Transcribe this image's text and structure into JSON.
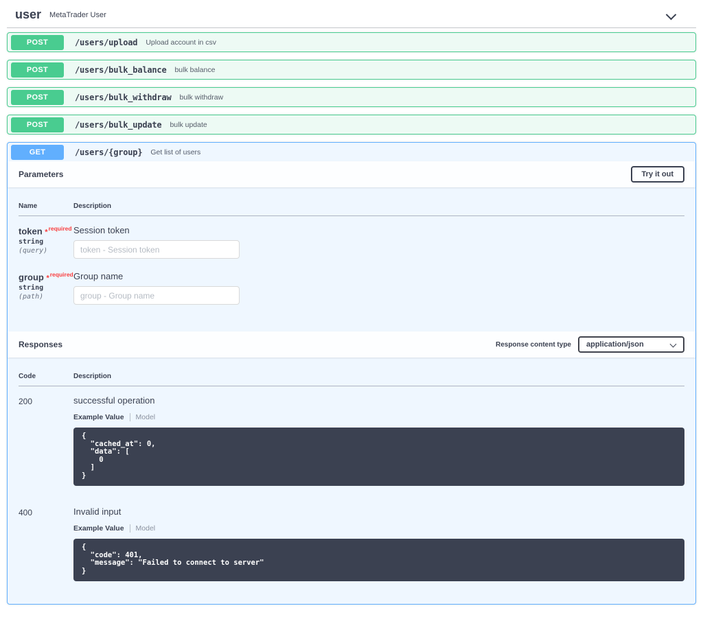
{
  "colors": {
    "post_green": "#49cc90",
    "get_blue": "#61affe",
    "text_dark": "#3b4151",
    "required_red": "#f93e3e",
    "code_block_bg": "#3b4151"
  },
  "tag": {
    "name": "user",
    "description": "MetaTrader User"
  },
  "operations": [
    {
      "method": "POST",
      "path": "/users/upload",
      "summary": "Upload account in csv"
    },
    {
      "method": "POST",
      "path": "/users/bulk_balance",
      "summary": "bulk balance"
    },
    {
      "method": "POST",
      "path": "/users/bulk_withdraw",
      "summary": "bulk withdraw"
    },
    {
      "method": "POST",
      "path": "/users/bulk_update",
      "summary": "bulk update"
    },
    {
      "method": "GET",
      "path": "/users/{group}",
      "summary": "Get list of users"
    }
  ],
  "detail": {
    "parameters": {
      "title": "Parameters",
      "try_it_out": "Try it out",
      "name_header": "Name",
      "description_header": "Description",
      "items": [
        {
          "name": "token",
          "required_star": "*",
          "required_label": "required",
          "type": "string",
          "location": "(query)",
          "description": "Session token",
          "placeholder": "token - Session token"
        },
        {
          "name": "group",
          "required_star": "*",
          "required_label": "required",
          "type": "string",
          "location": "(path)",
          "description": "Group name",
          "placeholder": "group - Group name"
        }
      ]
    },
    "responses": {
      "title": "Responses",
      "content_type_label": "Response content type",
      "content_type_value": "application/json",
      "code_header": "Code",
      "description_header": "Description",
      "items": [
        {
          "code": "200",
          "description": "successful operation",
          "example_tab": "Example Value",
          "model_tab": "Model",
          "example": "{\n  \"cached_at\": 0,\n  \"data\": [\n    0\n  ]\n}"
        },
        {
          "code": "400",
          "description": "Invalid input",
          "example_tab": "Example Value",
          "model_tab": "Model",
          "example": "{\n  \"code\": 401,\n  \"message\": \"Failed to connect to server\"\n}"
        }
      ]
    }
  }
}
